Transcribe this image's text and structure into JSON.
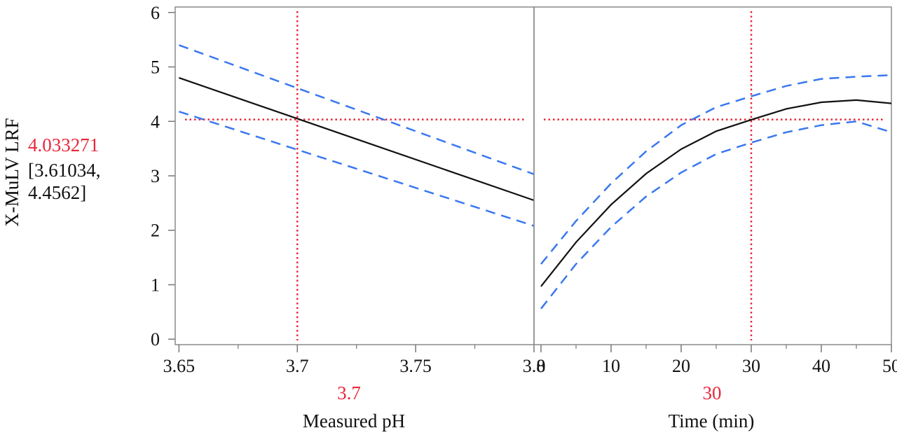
{
  "chart_data": {
    "type": "line",
    "y_axis": {
      "label": "X-MuLV LRF",
      "range": [
        -0.1,
        6.1
      ],
      "ticks": [
        0,
        1,
        2,
        3,
        4,
        5,
        6
      ],
      "current_value": "4.033271",
      "ci_line1": "[3.61034,",
      "ci_line2": "4.4562]",
      "current_numeric": 4.033271
    },
    "panels": [
      {
        "xlabel": "Measured pH",
        "x_range": [
          3.6484,
          3.8
        ],
        "ticks": [
          3.65,
          3.7,
          3.75,
          3.8
        ],
        "tick_labels": [
          "3.65",
          "3.7",
          "3.75",
          "3.8"
        ],
        "current_x": 3.7,
        "current_x_label": "3.7",
        "fit": {
          "x": [
            3.65,
            3.8
          ],
          "y": [
            4.8,
            2.55
          ]
        },
        "upper": {
          "x": [
            3.65,
            3.8
          ],
          "y": [
            5.4,
            3.03
          ]
        },
        "lower": {
          "x": [
            3.65,
            3.8
          ],
          "y": [
            4.18,
            2.08
          ]
        }
      },
      {
        "xlabel": "Time (min)",
        "x_range": [
          -1.0,
          50.0
        ],
        "ticks": [
          0,
          10,
          20,
          30,
          40,
          50
        ],
        "tick_labels": [
          "0",
          "10",
          "20",
          "30",
          "40",
          "50"
        ],
        "current_x": 30,
        "current_x_label": "30",
        "fit": {
          "x": [
            0,
            5,
            10,
            15,
            20,
            25,
            30,
            35,
            40,
            45,
            50
          ],
          "y": [
            0.97,
            1.78,
            2.47,
            3.04,
            3.49,
            3.82,
            4.03,
            4.23,
            4.35,
            4.39,
            4.33
          ]
        },
        "upper": {
          "x": [
            0,
            5,
            10,
            15,
            20,
            25,
            30,
            35,
            40,
            45,
            50
          ],
          "y": [
            1.38,
            2.17,
            2.86,
            3.45,
            3.93,
            4.26,
            4.46,
            4.65,
            4.78,
            4.82,
            4.85
          ]
        },
        "lower": {
          "x": [
            0,
            5,
            10,
            15,
            20,
            25,
            30,
            35,
            40,
            45,
            50
          ],
          "y": [
            0.56,
            1.38,
            2.06,
            2.62,
            3.06,
            3.4,
            3.61,
            3.8,
            3.93,
            4.0,
            3.8
          ]
        }
      }
    ],
    "colors": {
      "fit": "#111111",
      "ci": "#3a78f0",
      "crosshair": "#e8283a"
    },
    "grid": false,
    "legend": "none"
  }
}
